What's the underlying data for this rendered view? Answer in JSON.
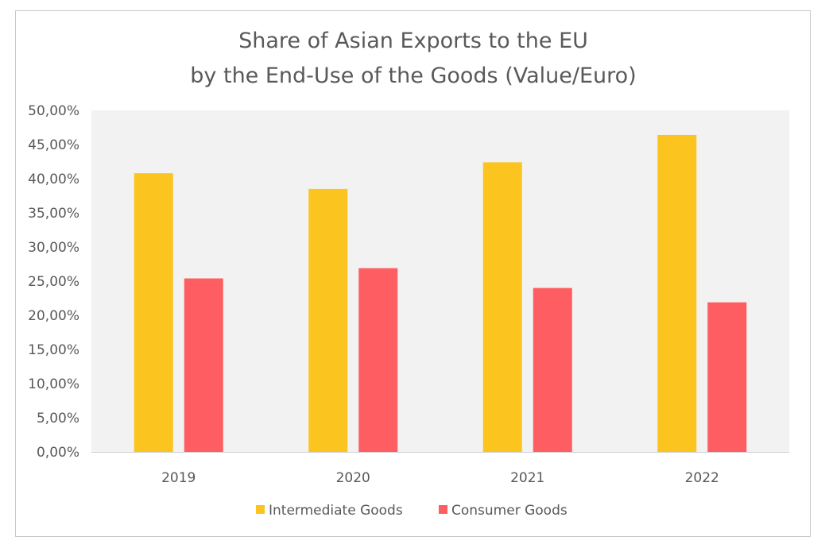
{
  "chart_data": {
    "type": "bar",
    "title_lines": [
      "Share of Asian Exports to the EU",
      "by the End-Use of the Goods (Value/Euro)"
    ],
    "categories": [
      "2019",
      "2020",
      "2021",
      "2022"
    ],
    "series": [
      {
        "name": "Intermediate Goods",
        "color": "#FCC41F",
        "values": [
          40.8,
          38.5,
          42.4,
          46.4
        ]
      },
      {
        "name": "Consumer Goods",
        "color": "#FE5E61",
        "values": [
          25.4,
          26.9,
          24.0,
          21.9
        ]
      }
    ],
    "ylim": [
      0,
      50
    ],
    "yticks": [
      "0,00%",
      "5,00%",
      "10,00%",
      "15,00%",
      "20,00%",
      "25,00%",
      "30,00%",
      "35,00%",
      "40,00%",
      "45,00%",
      "50,00%"
    ],
    "grid": false,
    "plot_background": "#F2F2F2",
    "legend_position": "bottom"
  }
}
